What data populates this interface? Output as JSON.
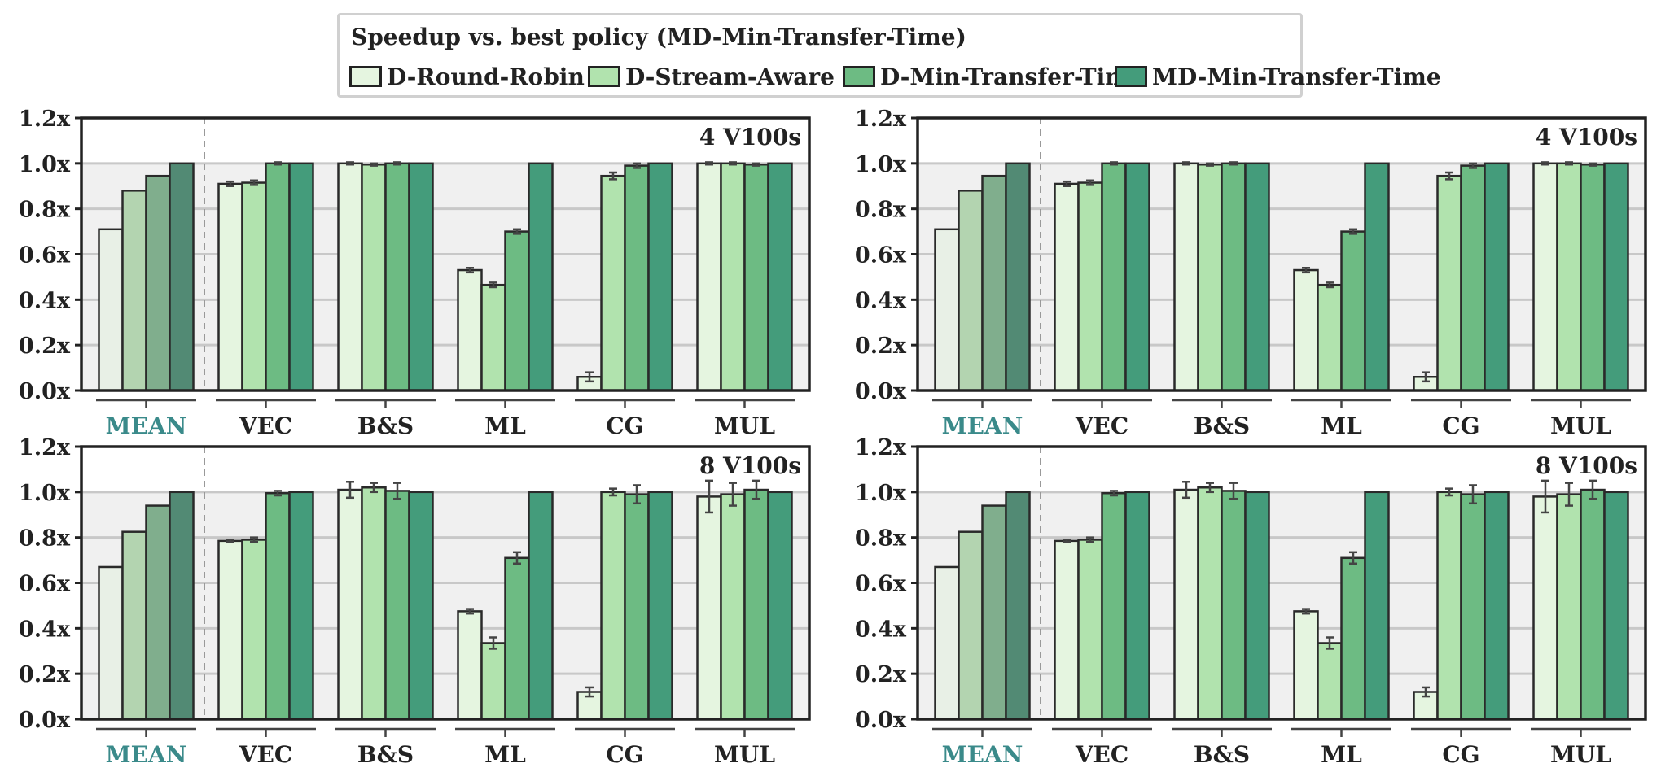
{
  "legend": {
    "title": "Speedup vs. best policy (MD-Min-Transfer-Time)",
    "entries": [
      "D-Round-Robin",
      "D-Stream-Aware",
      "D-Min-Transfer-Time",
      "MD-Min-Transfer-Time"
    ]
  },
  "colors": {
    "series": [
      "#e5f5e0",
      "#b1e3ae",
      "#6dbb83",
      "#449c7b"
    ],
    "mean_series": [
      "#e8f0e6",
      "#b3d4b0",
      "#80ae8d",
      "#528a74"
    ],
    "mean_label": "#3a8a8a",
    "panel_bg": "#f0f0f0",
    "grid": "#c8c8c8"
  },
  "chart_data": [
    {
      "type": "bar",
      "annotation": "4 V100s",
      "categories": [
        "MEAN",
        "VEC",
        "B&S",
        "ML",
        "CG",
        "MUL"
      ],
      "series": [
        {
          "name": "D-Round-Robin",
          "values": [
            0.71,
            0.91,
            1.0,
            0.53,
            0.06,
            1.0
          ],
          "errors": [
            0,
            0.01,
            0.005,
            0.01,
            0.02,
            0.005
          ]
        },
        {
          "name": "D-Stream-Aware",
          "values": [
            0.88,
            0.915,
            0.995,
            0.465,
            0.945,
            1.0
          ],
          "errors": [
            0,
            0.01,
            0.005,
            0.01,
            0.015,
            0.005
          ]
        },
        {
          "name": "D-Min-Transfer-Time",
          "values": [
            0.945,
            1.0,
            1.0,
            0.7,
            0.99,
            0.995
          ],
          "errors": [
            0,
            0.005,
            0.005,
            0.01,
            0.01,
            0.005
          ]
        },
        {
          "name": "MD-Min-Transfer-Time",
          "values": [
            1.0,
            1.0,
            1.0,
            1.0,
            1.0,
            1.0
          ],
          "errors": [
            0,
            0,
            0,
            0,
            0,
            0
          ]
        }
      ],
      "ylim": [
        0,
        1.2
      ],
      "yticks": [
        "0.0x",
        "0.2x",
        "0.4x",
        "0.6x",
        "0.8x",
        "1.0x",
        "1.2x"
      ],
      "grid": true
    },
    {
      "type": "bar",
      "annotation": "4 V100s",
      "categories": [
        "MEAN",
        "VEC",
        "B&S",
        "ML",
        "CG",
        "MUL"
      ],
      "series": [
        {
          "name": "D-Round-Robin",
          "values": [
            0.71,
            0.91,
            1.0,
            0.53,
            0.06,
            1.0
          ],
          "errors": [
            0,
            0.01,
            0.005,
            0.01,
            0.02,
            0.005
          ]
        },
        {
          "name": "D-Stream-Aware",
          "values": [
            0.88,
            0.915,
            0.995,
            0.465,
            0.945,
            1.0
          ],
          "errors": [
            0,
            0.01,
            0.005,
            0.01,
            0.015,
            0.005
          ]
        },
        {
          "name": "D-Min-Transfer-Time",
          "values": [
            0.945,
            1.0,
            1.0,
            0.7,
            0.99,
            0.995
          ],
          "errors": [
            0,
            0.005,
            0.005,
            0.01,
            0.01,
            0.005
          ]
        },
        {
          "name": "MD-Min-Transfer-Time",
          "values": [
            1.0,
            1.0,
            1.0,
            1.0,
            1.0,
            1.0
          ],
          "errors": [
            0,
            0,
            0,
            0,
            0,
            0
          ]
        }
      ],
      "ylim": [
        0,
        1.2
      ],
      "yticks": [
        "0.0x",
        "0.2x",
        "0.4x",
        "0.6x",
        "0.8x",
        "1.0x",
        "1.2x"
      ],
      "grid": true
    },
    {
      "type": "bar",
      "annotation": "8 V100s",
      "categories": [
        "MEAN",
        "VEC",
        "B&S",
        "ML",
        "CG",
        "MUL"
      ],
      "series": [
        {
          "name": "D-Round-Robin",
          "values": [
            0.67,
            0.785,
            1.01,
            0.475,
            0.12,
            0.98
          ],
          "errors": [
            0,
            0.005,
            0.035,
            0.01,
            0.02,
            0.07
          ]
        },
        {
          "name": "D-Stream-Aware",
          "values": [
            0.825,
            0.79,
            1.02,
            0.335,
            1.0,
            0.99
          ],
          "errors": [
            0,
            0.01,
            0.02,
            0.025,
            0.015,
            0.05
          ]
        },
        {
          "name": "D-Min-Transfer-Time",
          "values": [
            0.94,
            0.995,
            1.005,
            0.71,
            0.99,
            1.01
          ],
          "errors": [
            0,
            0.01,
            0.035,
            0.025,
            0.04,
            0.04
          ]
        },
        {
          "name": "MD-Min-Transfer-Time",
          "values": [
            1.0,
            1.0,
            1.0,
            1.0,
            1.0,
            1.0
          ],
          "errors": [
            0,
            0,
            0,
            0,
            0,
            0
          ]
        }
      ],
      "ylim": [
        0,
        1.2
      ],
      "yticks": [
        "0.0x",
        "0.2x",
        "0.4x",
        "0.6x",
        "0.8x",
        "1.0x",
        "1.2x"
      ],
      "grid": true
    },
    {
      "type": "bar",
      "annotation": "8 V100s",
      "categories": [
        "MEAN",
        "VEC",
        "B&S",
        "ML",
        "CG",
        "MUL"
      ],
      "series": [
        {
          "name": "D-Round-Robin",
          "values": [
            0.67,
            0.785,
            1.01,
            0.475,
            0.12,
            0.98
          ],
          "errors": [
            0,
            0.005,
            0.035,
            0.01,
            0.02,
            0.07
          ]
        },
        {
          "name": "D-Stream-Aware",
          "values": [
            0.825,
            0.79,
            1.02,
            0.335,
            1.0,
            0.99
          ],
          "errors": [
            0,
            0.01,
            0.02,
            0.025,
            0.015,
            0.05
          ]
        },
        {
          "name": "D-Min-Transfer-Time",
          "values": [
            0.94,
            0.995,
            1.005,
            0.71,
            0.99,
            1.01
          ],
          "errors": [
            0,
            0.01,
            0.035,
            0.025,
            0.04,
            0.04
          ]
        },
        {
          "name": "MD-Min-Transfer-Time",
          "values": [
            1.0,
            1.0,
            1.0,
            1.0,
            1.0,
            1.0
          ],
          "errors": [
            0,
            0,
            0,
            0,
            0,
            0
          ]
        }
      ],
      "ylim": [
        0,
        1.2
      ],
      "yticks": [
        "0.0x",
        "0.2x",
        "0.4x",
        "0.6x",
        "0.8x",
        "1.0x",
        "1.2x"
      ],
      "grid": true
    }
  ]
}
